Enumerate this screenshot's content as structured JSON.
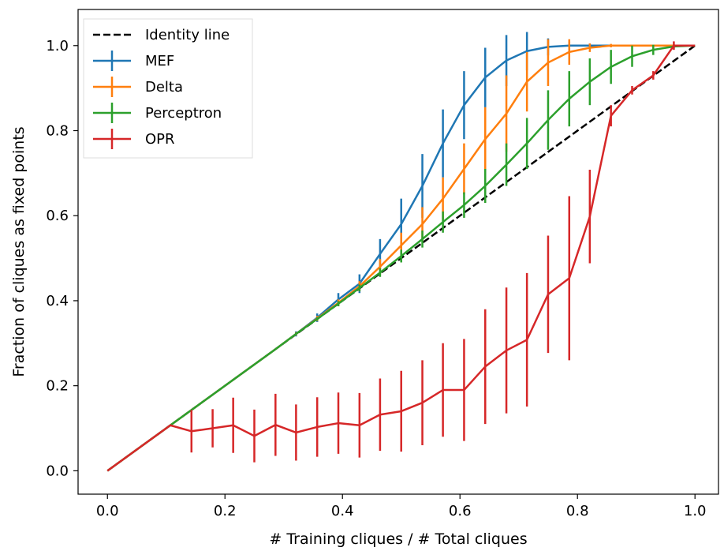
{
  "chart_data": {
    "type": "line",
    "xlabel": "# Training cliques / # Total cliques",
    "ylabel": "Fraction of cliques as fixed points",
    "xlim": [
      -0.05,
      1.04
    ],
    "ylim": [
      -0.055,
      1.085
    ],
    "xticks": [
      0.0,
      0.2,
      0.4,
      0.6,
      0.8,
      1.0
    ],
    "yticks": [
      0.0,
      0.2,
      0.4,
      0.6,
      0.8,
      1.0
    ],
    "xtick_labels": [
      "0.0",
      "0.2",
      "0.4",
      "0.6",
      "0.8",
      "1.0"
    ],
    "ytick_labels": [
      "0.0",
      "0.2",
      "0.4",
      "0.6",
      "0.8",
      "1.0"
    ],
    "grid": false,
    "legend_position": "upper-left",
    "identity_line": {
      "name": "Identity line",
      "color": "#000000",
      "style": "dashed"
    },
    "series": [
      {
        "name": "MEF",
        "color": "#1f77b4",
        "x": [
          0.0,
          0.107,
          0.143,
          0.179,
          0.214,
          0.25,
          0.286,
          0.321,
          0.357,
          0.393,
          0.429,
          0.464,
          0.5,
          0.536,
          0.571,
          0.607,
          0.643,
          0.679,
          0.714,
          0.75,
          0.786,
          0.821,
          0.857,
          0.893,
          0.929,
          0.964,
          1.0
        ],
        "y": [
          0.0,
          0.107,
          0.143,
          0.179,
          0.214,
          0.25,
          0.286,
          0.322,
          0.36,
          0.403,
          0.44,
          0.51,
          0.58,
          0.67,
          0.77,
          0.86,
          0.925,
          0.965,
          0.987,
          0.997,
          1.0,
          1.0,
          1.0,
          1.0,
          1.0,
          1.0,
          1.0
        ],
        "err": [
          0,
          0,
          0,
          0,
          0,
          0,
          0,
          0.006,
          0.01,
          0.015,
          0.022,
          0.035,
          0.06,
          0.075,
          0.08,
          0.08,
          0.07,
          0.06,
          0.045,
          0.02,
          0.01,
          0.005,
          0.002,
          0,
          0,
          0,
          0
        ]
      },
      {
        "name": "Delta",
        "color": "#ff7f0e",
        "x": [
          0.0,
          0.107,
          0.143,
          0.179,
          0.214,
          0.25,
          0.286,
          0.321,
          0.357,
          0.393,
          0.429,
          0.464,
          0.5,
          0.536,
          0.571,
          0.607,
          0.643,
          0.679,
          0.714,
          0.75,
          0.786,
          0.821,
          0.857,
          0.893,
          0.929,
          0.964,
          1.0
        ],
        "y": [
          0.0,
          0.107,
          0.143,
          0.179,
          0.214,
          0.25,
          0.286,
          0.322,
          0.358,
          0.395,
          0.434,
          0.48,
          0.53,
          0.58,
          0.64,
          0.71,
          0.78,
          0.84,
          0.915,
          0.96,
          0.985,
          0.995,
          1.0,
          1.0,
          1.0,
          1.0,
          1.0
        ],
        "err": [
          0,
          0,
          0,
          0,
          0,
          0,
          0,
          0.004,
          0.006,
          0.008,
          0.012,
          0.018,
          0.03,
          0.04,
          0.05,
          0.06,
          0.075,
          0.09,
          0.07,
          0.055,
          0.03,
          0.01,
          0.004,
          0,
          0,
          0,
          0
        ]
      },
      {
        "name": "Perceptron",
        "color": "#2ca02c",
        "x": [
          0.0,
          0.107,
          0.143,
          0.179,
          0.214,
          0.25,
          0.286,
          0.321,
          0.357,
          0.393,
          0.429,
          0.464,
          0.5,
          0.536,
          0.571,
          0.607,
          0.643,
          0.679,
          0.714,
          0.75,
          0.786,
          0.821,
          0.857,
          0.893,
          0.929,
          0.964,
          1.0
        ],
        "y": [
          0.0,
          0.107,
          0.143,
          0.179,
          0.214,
          0.25,
          0.286,
          0.322,
          0.357,
          0.393,
          0.43,
          0.466,
          0.505,
          0.545,
          0.585,
          0.625,
          0.67,
          0.72,
          0.77,
          0.825,
          0.875,
          0.915,
          0.95,
          0.975,
          0.99,
          0.998,
          1.0
        ],
        "err": [
          0,
          0,
          0,
          0,
          0,
          0,
          0,
          0.003,
          0.004,
          0.006,
          0.008,
          0.01,
          0.015,
          0.02,
          0.025,
          0.03,
          0.04,
          0.05,
          0.06,
          0.07,
          0.065,
          0.055,
          0.04,
          0.025,
          0.012,
          0.005,
          0
        ]
      },
      {
        "name": "OPR",
        "color": "#d62728",
        "x": [
          0.0,
          0.107,
          0.143,
          0.179,
          0.214,
          0.25,
          0.286,
          0.321,
          0.357,
          0.393,
          0.429,
          0.464,
          0.5,
          0.536,
          0.571,
          0.607,
          0.643,
          0.679,
          0.714,
          0.75,
          0.786,
          0.821,
          0.857,
          0.893,
          0.929,
          0.964,
          1.0
        ],
        "y": [
          0.0,
          0.107,
          0.093,
          0.1,
          0.107,
          0.082,
          0.108,
          0.09,
          0.103,
          0.112,
          0.107,
          0.132,
          0.14,
          0.16,
          0.19,
          0.19,
          0.245,
          0.283,
          0.308,
          0.415,
          0.453,
          0.598,
          0.835,
          0.895,
          0.93,
          1.0,
          1.0
        ],
        "err": [
          0,
          0,
          0.05,
          0.045,
          0.065,
          0.062,
          0.073,
          0.066,
          0.07,
          0.072,
          0.076,
          0.085,
          0.095,
          0.1,
          0.11,
          0.12,
          0.135,
          0.148,
          0.157,
          0.138,
          0.193,
          0.11,
          0.025,
          0.01,
          0.01,
          0.01,
          0
        ]
      }
    ]
  }
}
